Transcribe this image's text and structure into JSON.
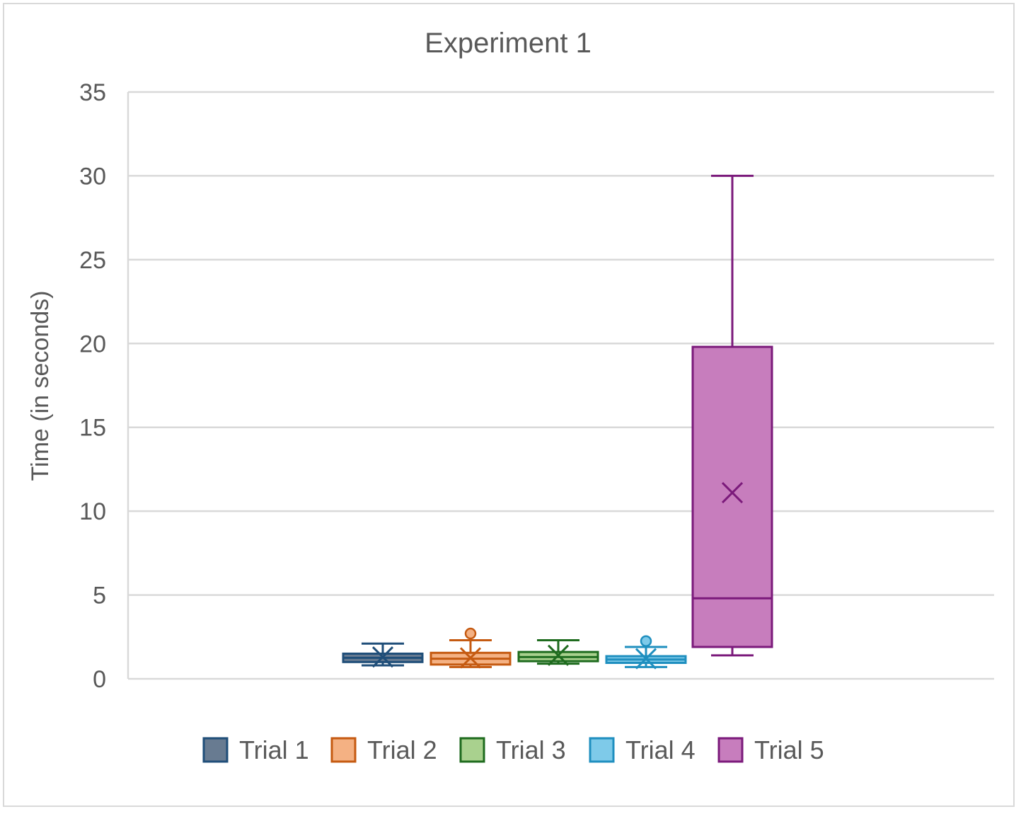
{
  "chart_data": {
    "type": "box",
    "title": "Experiment 1",
    "xlabel": "",
    "ylabel": "Time (in seconds)",
    "ylim": [
      0,
      35
    ],
    "yticks": [
      0,
      5,
      10,
      15,
      20,
      25,
      30,
      35
    ],
    "grid": true,
    "legend_position": "bottom",
    "series": [
      {
        "name": "Trial 1",
        "min": 0.8,
        "q1": 1.0,
        "median": 1.25,
        "q3": 1.5,
        "max": 2.1,
        "mean": 1.3,
        "outliers": [],
        "fill": "#687b91",
        "stroke": "#1f4e79"
      },
      {
        "name": "Trial 2",
        "min": 0.7,
        "q1": 0.85,
        "median": 1.2,
        "q3": 1.55,
        "max": 2.3,
        "mean": 1.25,
        "outliers": [
          2.7
        ],
        "fill": "#f4b183",
        "stroke": "#c55a11"
      },
      {
        "name": "Trial 3",
        "min": 0.9,
        "q1": 1.05,
        "median": 1.3,
        "q3": 1.6,
        "max": 2.3,
        "mean": 1.4,
        "outliers": [],
        "fill": "#a9d18e",
        "stroke": "#1e6b1e"
      },
      {
        "name": "Trial 4",
        "min": 0.7,
        "q1": 0.95,
        "median": 1.15,
        "q3": 1.35,
        "max": 1.9,
        "mean": 1.2,
        "outliers": [
          2.25
        ],
        "fill": "#7ecae9",
        "stroke": "#1f8fbf"
      },
      {
        "name": "Trial 5",
        "min": 1.4,
        "q1": 1.9,
        "median": 4.8,
        "q3": 19.8,
        "max": 30.0,
        "mean": 11.1,
        "outliers": [],
        "fill": "#c77dbd",
        "stroke": "#7b1a7b"
      }
    ]
  }
}
